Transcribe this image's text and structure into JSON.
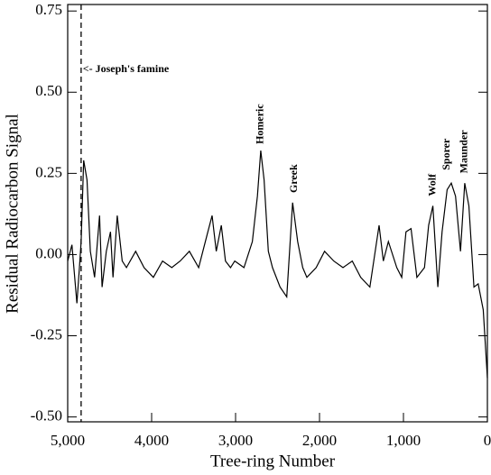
{
  "chart_data": {
    "type": "line",
    "x_label": "Tree-ring Number",
    "y_label": "Residual Radiocarbon Signal",
    "xlim": [
      5000,
      0
    ],
    "ylim": [
      -0.515,
      0.77
    ],
    "xticks": [
      {
        "value": 5000,
        "label": "5,000"
      },
      {
        "value": 4000,
        "label": "4,000"
      },
      {
        "value": 3000,
        "label": "3,000"
      },
      {
        "value": 2000,
        "label": "2,000"
      },
      {
        "value": 1000,
        "label": "1,000"
      },
      0
    ],
    "yticks": [
      0.75,
      {
        "value": 0.5,
        "label": "0.50"
      },
      0.25,
      {
        "value": 0,
        "label": "0.00"
      },
      -0.25,
      {
        "value": -0.5,
        "label": "-0.50"
      }
    ],
    "series": [
      {
        "color": "#000000",
        "x": [
          5000,
          4950,
          4890,
          4860,
          4840,
          4810,
          4770,
          4730,
          4680,
          4620,
          4590,
          4540,
          4490,
          4460,
          4410,
          4350,
          4300,
          4190,
          4090,
          3980,
          3870,
          3760,
          3660,
          3550,
          3440,
          3330,
          3280,
          3230,
          3170,
          3120,
          3060,
          3010,
          2900,
          2800,
          2740,
          2700,
          2660,
          2610,
          2560,
          2470,
          2390,
          2320,
          2260,
          2200,
          2150,
          2040,
          1940,
          1830,
          1720,
          1610,
          1510,
          1400,
          1290,
          1240,
          1180,
          1080,
          1020,
          970,
          910,
          840,
          750,
          700,
          650,
          590,
          540,
          480,
          430,
          380,
          320,
          270,
          220,
          160,
          110,
          50,
          0
        ],
        "values": [
          -0.02,
          0.03,
          -0.15,
          -0.04,
          0.04,
          0.29,
          0.23,
          0.01,
          -0.07,
          0.12,
          -0.1,
          0.01,
          0.07,
          -0.07,
          0.12,
          -0.02,
          -0.04,
          0.01,
          -0.04,
          -0.07,
          -0.02,
          -0.04,
          -0.02,
          0.01,
          -0.04,
          0.07,
          0.12,
          0.01,
          0.09,
          -0.02,
          -0.04,
          -0.02,
          -0.04,
          0.04,
          0.18,
          0.32,
          0.23,
          0.01,
          -0.04,
          -0.1,
          -0.13,
          0.16,
          0.04,
          -0.04,
          -0.07,
          -0.04,
          0.01,
          -0.02,
          -0.04,
          -0.02,
          -0.07,
          -0.1,
          0.09,
          -0.02,
          0.04,
          -0.04,
          -0.07,
          0.07,
          0.08,
          -0.07,
          -0.04,
          0.09,
          0.15,
          -0.1,
          0.07,
          0.2,
          0.22,
          0.18,
          0.01,
          0.22,
          0.15,
          -0.1,
          -0.09,
          -0.17,
          -0.38
        ]
      }
    ],
    "vlines": [
      4840
    ],
    "annotations": [
      {
        "text": "<- Joseph's famine",
        "x": 4820,
        "y": 0.57
      },
      {
        "text": "Homeric",
        "x": 2700,
        "y": 0.34
      },
      {
        "text": "Greek",
        "x": 2300,
        "y": 0.19
      },
      {
        "text": "Wolf",
        "x": 650,
        "y": 0.18
      },
      {
        "text": "Sporer",
        "x": 480,
        "y": 0.26
      },
      {
        "text": "Maunder",
        "x": 270,
        "y": 0.25
      }
    ]
  }
}
